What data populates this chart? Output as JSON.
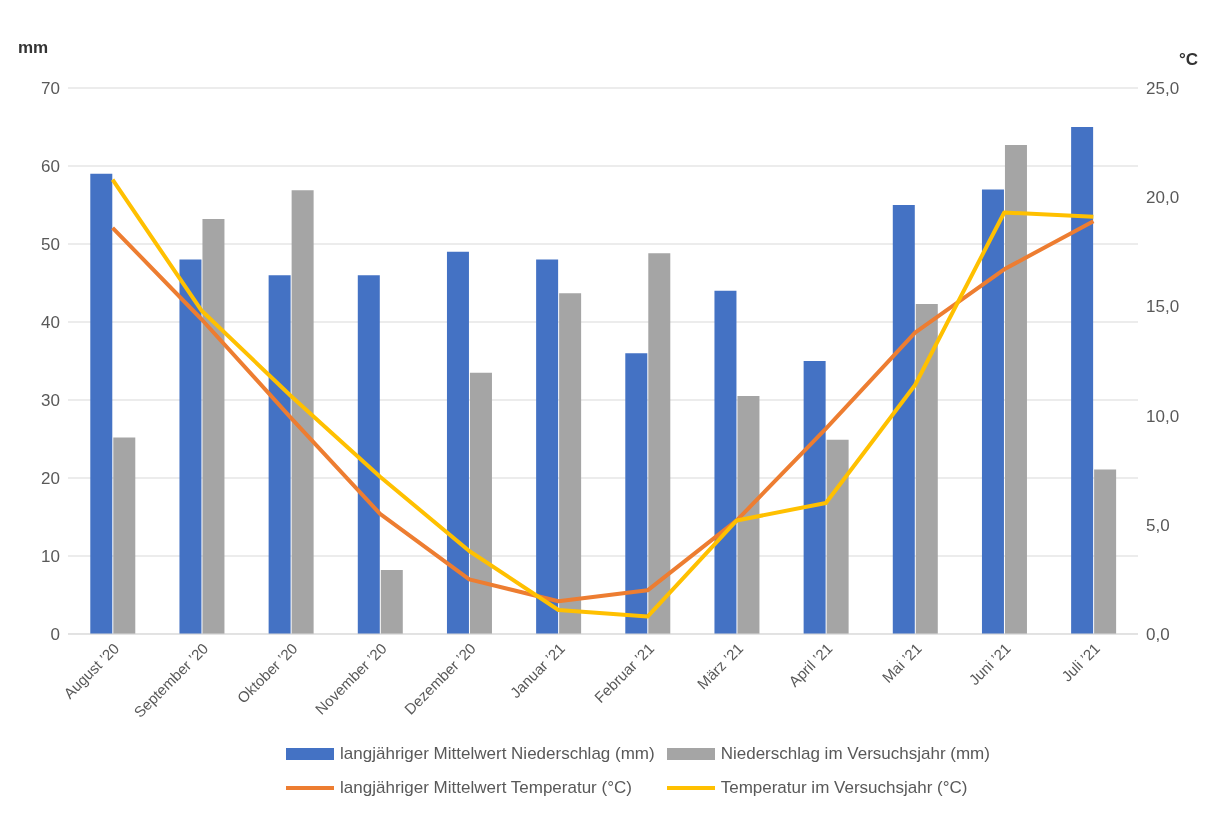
{
  "chart_data": {
    "type": "bar",
    "ylabel": "mm",
    "y2label": "°C",
    "categories": [
      "August ’20",
      "September ’20",
      "Oktober ’20",
      "November ’20",
      "Dezember ’20",
      "Januar ’21",
      "Februar ’21",
      "März ’21",
      "April ’21",
      "Mai ’21",
      "Juni ’21",
      "Juli ’21"
    ],
    "series": [
      {
        "name": "langjähriger Mittelwert Niederschlag (mm)",
        "color": "#4472c4",
        "values": [
          59,
          48,
          46,
          46,
          49,
          48,
          36,
          44,
          35,
          55,
          57,
          65
        ]
      },
      {
        "name": "Niederschlag im Versuchsjahr (mm)",
        "color": "#a5a5a5",
        "values": [
          25.2,
          53.2,
          56.9,
          8.2,
          33.5,
          43.7,
          48.8,
          30.5,
          24.9,
          42.3,
          62.7,
          21.1
        ]
      },
      {
        "name": "langjähriger Mittelwert Temperatur (°C)",
        "type": "line",
        "axis": "y2",
        "color": "#ed7d31",
        "values": [
          18.6,
          14.4,
          9.9,
          5.5,
          2.5,
          1.5,
          2.0,
          5.2,
          9.4,
          13.8,
          16.7,
          18.9
        ]
      },
      {
        "name": "Temperatur im Versuchsjahr (°C)",
        "type": "line",
        "axis": "y2",
        "color": "#ffc000",
        "values": [
          20.8,
          14.8,
          10.9,
          7.2,
          3.8,
          1.1,
          0.8,
          5.2,
          6.0,
          11.4,
          19.3,
          19.1
        ]
      }
    ],
    "ylim": [
      0,
      70
    ],
    "yticks": [
      0,
      10,
      20,
      30,
      40,
      50,
      60,
      70
    ],
    "y2lim": [
      0,
      25
    ],
    "y2ticks": [
      {
        "value": 0,
        "label": "0,0"
      },
      {
        "value": 5,
        "label": "5,0"
      },
      {
        "value": 10,
        "label": "10,0"
      },
      {
        "value": 15,
        "label": "15,0"
      },
      {
        "value": 20,
        "label": "20,0"
      },
      {
        "value": 25,
        "label": "25,0"
      }
    ],
    "grid": "y",
    "legend": "bottom",
    "marker": "none",
    "line_style": "solid"
  }
}
